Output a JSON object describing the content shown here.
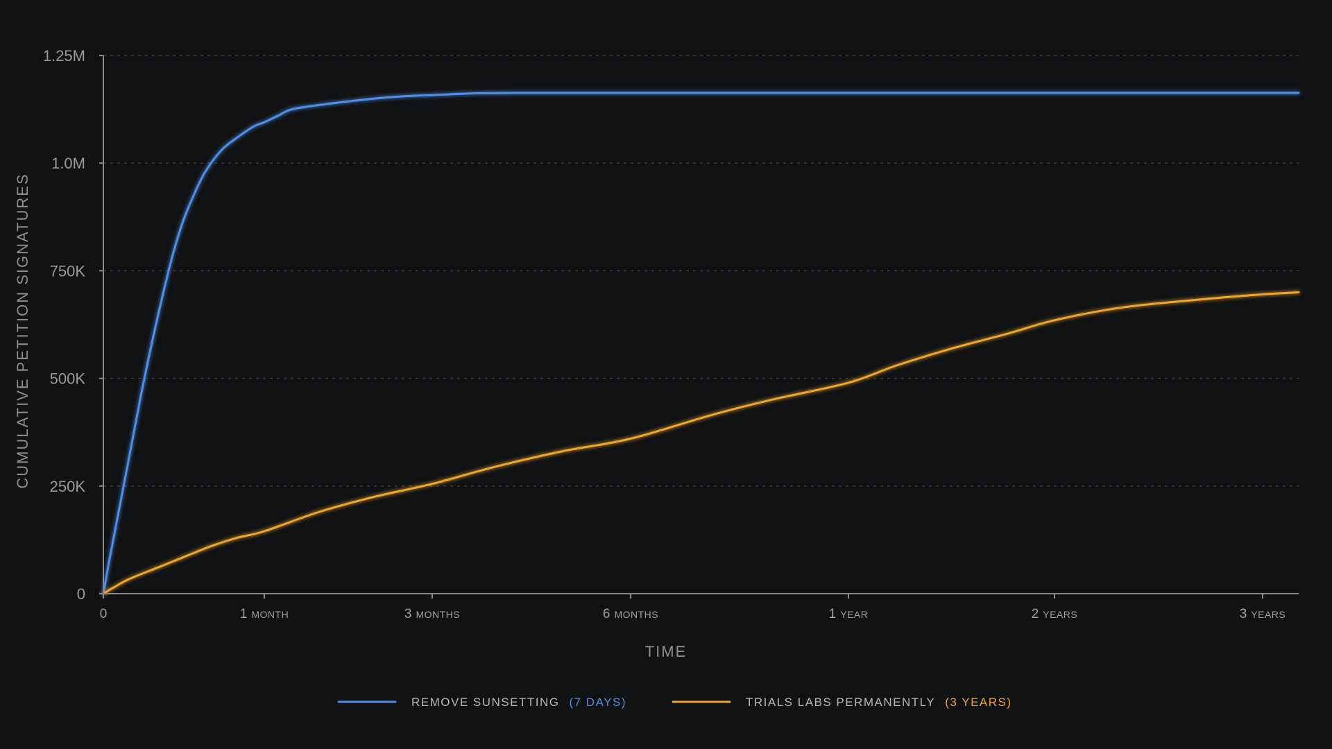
{
  "chart_data": {
    "type": "line",
    "title": "",
    "xlabel": "TIME",
    "ylabel": "CUMULATIVE PETITION SIGNATURES",
    "ylim": [
      0,
      1250000
    ],
    "xlim_days": [
      0,
      1160
    ],
    "grid": true,
    "legend_position": "bottom-center",
    "y_ticks": [
      {
        "value": 0,
        "label": "0"
      },
      {
        "value": 250000,
        "label": "250K"
      },
      {
        "value": 500000,
        "label": "500K"
      },
      {
        "value": 750000,
        "label": "750K"
      },
      {
        "value": 1000000,
        "label": "1.0M"
      },
      {
        "value": 1250000,
        "label": "1.25M"
      }
    ],
    "x_ticks": [
      {
        "value": 0,
        "num": "0",
        "unit": ""
      },
      {
        "value": 30,
        "num": "1",
        "unit": "MONTH"
      },
      {
        "value": 91,
        "num": "3",
        "unit": "MONTHS"
      },
      {
        "value": 182,
        "num": "6",
        "unit": "MONTHS"
      },
      {
        "value": 365,
        "num": "1",
        "unit": "YEAR"
      },
      {
        "value": 730,
        "num": "2",
        "unit": "YEARS"
      },
      {
        "value": 1095,
        "num": "3",
        "unit": "YEARS"
      }
    ],
    "series": [
      {
        "name": "REMOVE SUNSETTING",
        "duration_label": "(7 DAYS)",
        "color": "#4f8fe8",
        "points": [
          [
            0,
            0
          ],
          [
            1,
            70000
          ],
          [
            3,
            200000
          ],
          [
            5,
            330000
          ],
          [
            7,
            460000
          ],
          [
            9,
            580000
          ],
          [
            11,
            690000
          ],
          [
            13,
            790000
          ],
          [
            15,
            870000
          ],
          [
            17,
            930000
          ],
          [
            19,
            980000
          ],
          [
            22,
            1030000
          ],
          [
            25,
            1060000
          ],
          [
            28,
            1085000
          ],
          [
            30,
            1095000
          ],
          [
            35,
            1110000
          ],
          [
            40,
            1125000
          ],
          [
            50,
            1135000
          ],
          [
            60,
            1143000
          ],
          [
            70,
            1150000
          ],
          [
            80,
            1155000
          ],
          [
            91,
            1158000
          ],
          [
            110,
            1162000
          ],
          [
            130,
            1163000
          ],
          [
            200,
            1163000
          ],
          [
            400,
            1163000
          ],
          [
            700,
            1163000
          ],
          [
            1000,
            1163000
          ],
          [
            1160,
            1163000
          ]
        ]
      },
      {
        "name": "TRIALS LABS PERMANENTLY",
        "duration_label": "(3 YEARS)",
        "color": "#eea62a",
        "points": [
          [
            0,
            0
          ],
          [
            2,
            15000
          ],
          [
            5,
            35000
          ],
          [
            10,
            60000
          ],
          [
            15,
            85000
          ],
          [
            20,
            110000
          ],
          [
            25,
            130000
          ],
          [
            30,
            145000
          ],
          [
            50,
            190000
          ],
          [
            70,
            225000
          ],
          [
            91,
            255000
          ],
          [
            120,
            295000
          ],
          [
            150,
            330000
          ],
          [
            182,
            360000
          ],
          [
            250,
            415000
          ],
          [
            300,
            450000
          ],
          [
            365,
            490000
          ],
          [
            450,
            530000
          ],
          [
            550,
            570000
          ],
          [
            650,
            605000
          ],
          [
            730,
            635000
          ],
          [
            850,
            665000
          ],
          [
            1000,
            685000
          ],
          [
            1095,
            695000
          ],
          [
            1160,
            700000
          ]
        ]
      }
    ]
  }
}
